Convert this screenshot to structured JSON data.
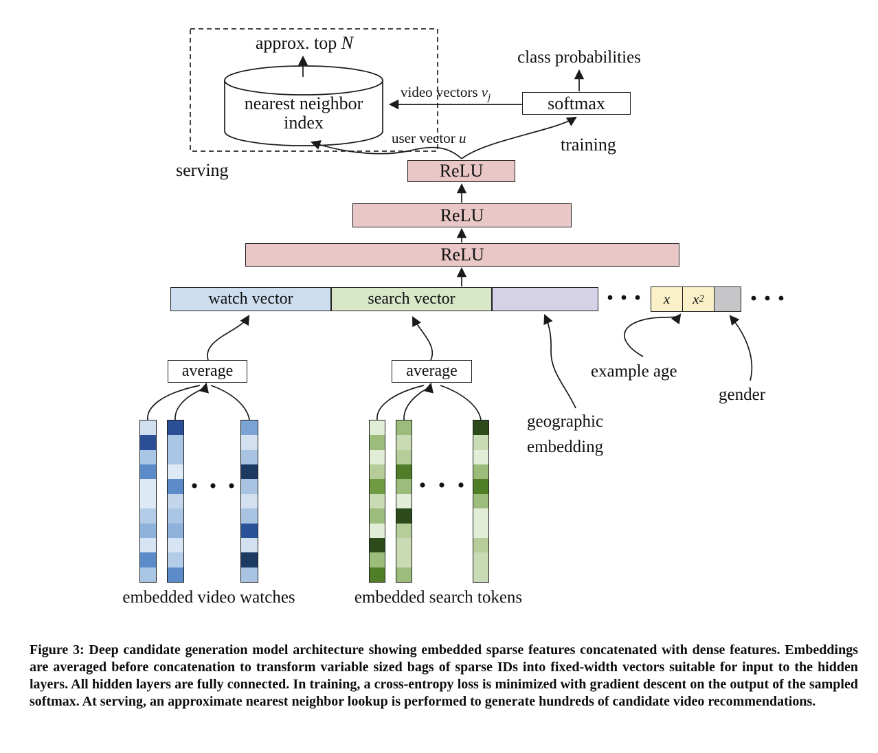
{
  "palette": {
    "relu_fill": "#eac7c7",
    "watch_fill": "#cdddf0",
    "search_fill": "#d9e7c9",
    "geo_fill": "#d5d2e7",
    "age_fill": "#fbf1c8",
    "gender_fill": "#c6c6c8",
    "box_white": "#ffffff",
    "line_color": "#1a1a1a"
  },
  "serving_section": {
    "approx_top_prefix": "approx. top ",
    "approx_top_math": "N",
    "nn_index_line1": "nearest neighbor",
    "nn_index_line2": "index",
    "serving_label": "serving"
  },
  "training_section": {
    "class_probabilities": "class probabilities",
    "softmax": "softmax",
    "training_label": "training",
    "video_vectors_prefix": "video vectors ",
    "video_vectors_math": "v",
    "video_vectors_sub": "j",
    "user_vector_prefix": "user vector ",
    "user_vector_math": "u"
  },
  "network": {
    "relu_label": "ReLU"
  },
  "concat_bar": {
    "watch_label": "watch vector",
    "search_label": "search vector",
    "age_x": "x",
    "age_x2_base": "x",
    "age_x2_sup": "2"
  },
  "feature_labels": {
    "average": "average",
    "example_age": "example age",
    "gender": "gender",
    "geographic_line1": "geographic",
    "geographic_line2": "embedding",
    "embedded_video": "embedded video watches",
    "embedded_search": "embedded search tokens"
  },
  "embedding_columns": {
    "video": {
      "col1": [
        "#cfdff0",
        "#2a4f96",
        "#a9c6e4",
        "#5b8bc9",
        "#dde9f5",
        "#dde9f5",
        "#b3cce7",
        "#8fb2dc",
        "#d5e3f2",
        "#5b8bc9",
        "#a9c6e4"
      ],
      "col2": [
        "#2a4f96",
        "#a9c6e4",
        "#a9c6e4",
        "#dde9f5",
        "#5b8bc9",
        "#c4d6ec",
        "#a9c6e4",
        "#8fb2dc",
        "#d7e4f3",
        "#b3cce7",
        "#5b8bc9"
      ],
      "col3": [
        "#7ba3d4",
        "#d3e0ef",
        "#a9c4e2",
        "#1d3a63",
        "#a9c4e2",
        "#d3e0ef",
        "#a9c4e2",
        "#2a5298",
        "#d3e0ef",
        "#1d3a63",
        "#a9c4e2"
      ]
    },
    "search": {
      "col1": [
        "#e2edd8",
        "#9cbc7c",
        "#e2edd8",
        "#b6cd9a",
        "#6f9b43",
        "#c9dbb4",
        "#9cbc7c",
        "#e2edd8",
        "#2c4a1a",
        "#9cbc7c",
        "#4f7d28"
      ],
      "col2": [
        "#9cbc7c",
        "#c9dbb4",
        "#b6cd9a",
        "#4f7d28",
        "#9cbc7c",
        "#e2edd8",
        "#2c4a1a",
        "#b6cd9a",
        "#c9dbb4",
        "#c9dbb4",
        "#9cbc7c"
      ],
      "col3": [
        "#2c4a1a",
        "#c9dbb4",
        "#e2edd8",
        "#9cbc7c",
        "#4f7d28",
        "#9cbc7c",
        "#e2edd8",
        "#e2edd8",
        "#b6cd9a",
        "#c9dbb4",
        "#c9dbb4"
      ]
    }
  },
  "caption": {
    "text": "Figure 3: Deep candidate generation model architecture showing embedded sparse features concatenated with dense features. Embeddings are averaged before concatenation to transform variable sized bags of sparse IDs into fixed-width vectors suitable for input to the hidden layers. All hidden layers are fully connected. In training, a cross-entropy loss is minimized with gradient descent on the output of the sampled softmax. At serving, an approximate nearest neighbor lookup is performed to generate hundreds of candidate video recommendations."
  }
}
